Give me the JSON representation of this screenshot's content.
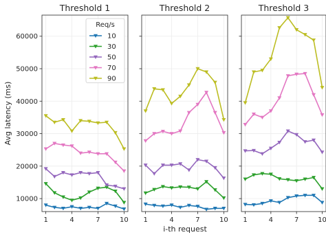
{
  "figure": {
    "ylabel": "Avg latency (ms)",
    "xlabel": "i-th request"
  },
  "legend": {
    "title": "Req/s",
    "placement": "upper-right of first panel"
  },
  "chart_data": [
    {
      "type": "line",
      "title": "Threshold 1",
      "x": [
        1,
        2,
        3,
        4,
        5,
        6,
        7,
        8,
        9,
        10
      ],
      "xticks": [
        1,
        4,
        7,
        10
      ],
      "ylim": [
        6000,
        66500
      ],
      "yticks": [
        10000,
        20000,
        30000,
        40000,
        50000,
        60000
      ],
      "grid": true,
      "series": [
        {
          "name": "10",
          "color": "#1f77b4",
          "marker": "triangle-down",
          "values": [
            8000,
            7300,
            7000,
            7500,
            7000,
            7300,
            7000,
            8500,
            7700,
            6800
          ]
        },
        {
          "name": "30",
          "color": "#2ca02c",
          "marker": "triangle-down",
          "values": [
            14600,
            11800,
            10500,
            9500,
            10200,
            12000,
            13200,
            13500,
            12300,
            8800
          ]
        },
        {
          "name": "50",
          "color": "#9467bd",
          "marker": "triangle-down",
          "values": [
            19200,
            16800,
            18000,
            17300,
            18000,
            17700,
            18000,
            14200,
            13800,
            13000
          ]
        },
        {
          "name": "70",
          "color": "#e377c2",
          "marker": "triangle-down",
          "values": [
            25300,
            27000,
            26500,
            26200,
            24000,
            24300,
            23800,
            23800,
            21200,
            18500
          ]
        },
        {
          "name": "90",
          "color": "#bcbd22",
          "marker": "triangle-down",
          "values": [
            35500,
            33500,
            34300,
            30800,
            34000,
            33800,
            33300,
            33500,
            30300,
            25300
          ]
        }
      ]
    },
    {
      "type": "line",
      "title": "Threshold 2",
      "x": [
        1,
        2,
        3,
        4,
        5,
        6,
        7,
        8,
        9,
        10
      ],
      "xticks": [
        1,
        4,
        7,
        10
      ],
      "ylim": [
        6000,
        66500
      ],
      "yticks": [
        10000,
        20000,
        30000,
        40000,
        50000,
        60000
      ],
      "grid": true,
      "series": [
        {
          "name": "10",
          "color": "#1f77b4",
          "marker": "triangle-down",
          "values": [
            8300,
            7900,
            7700,
            8000,
            7300,
            7900,
            7600,
            6700,
            7000,
            7000
          ]
        },
        {
          "name": "30",
          "color": "#2ca02c",
          "marker": "triangle-down",
          "values": [
            11700,
            12800,
            13700,
            13300,
            13600,
            13500,
            13000,
            15200,
            12700,
            10200
          ]
        },
        {
          "name": "50",
          "color": "#9467bd",
          "marker": "triangle-down",
          "values": [
            20300,
            17700,
            20300,
            20300,
            20700,
            18800,
            22000,
            21500,
            19500,
            16300
          ]
        },
        {
          "name": "70",
          "color": "#e377c2",
          "marker": "triangle-down",
          "values": [
            27800,
            30000,
            30700,
            30000,
            30800,
            36500,
            39000,
            42700,
            36500,
            30300
          ]
        },
        {
          "name": "90",
          "color": "#bcbd22",
          "marker": "triangle-down",
          "values": [
            37000,
            43800,
            43500,
            39300,
            41500,
            45000,
            50000,
            49000,
            45800,
            34300
          ]
        }
      ]
    },
    {
      "type": "line",
      "title": "Threshold 3",
      "x": [
        1,
        2,
        3,
        4,
        5,
        6,
        7,
        8,
        9,
        10
      ],
      "xticks": [
        1,
        4,
        7,
        10
      ],
      "ylim": [
        6000,
        66500
      ],
      "yticks": [
        10000,
        20000,
        30000,
        40000,
        50000,
        60000
      ],
      "grid": true,
      "series": [
        {
          "name": "10",
          "color": "#1f77b4",
          "marker": "triangle-down",
          "values": [
            8200,
            8100,
            8500,
            9300,
            8800,
            10300,
            10800,
            11000,
            11000,
            8800
          ]
        },
        {
          "name": "30",
          "color": "#2ca02c",
          "marker": "triangle-down",
          "values": [
            16000,
            17300,
            17700,
            17500,
            16100,
            15800,
            15500,
            16000,
            16500,
            13000
          ]
        },
        {
          "name": "50",
          "color": "#9467bd",
          "marker": "triangle-down",
          "values": [
            24700,
            24800,
            23800,
            25500,
            27300,
            30800,
            29700,
            27500,
            28000,
            24300
          ]
        },
        {
          "name": "70",
          "color": "#e377c2",
          "marker": "triangle-down",
          "values": [
            32800,
            36000,
            35000,
            37000,
            41000,
            47800,
            48300,
            48500,
            42000,
            35800
          ]
        },
        {
          "name": "90",
          "color": "#bcbd22",
          "marker": "triangle-down",
          "values": [
            39500,
            49000,
            49500,
            53000,
            62600,
            65700,
            62000,
            60500,
            58800,
            44200
          ]
        }
      ]
    }
  ]
}
